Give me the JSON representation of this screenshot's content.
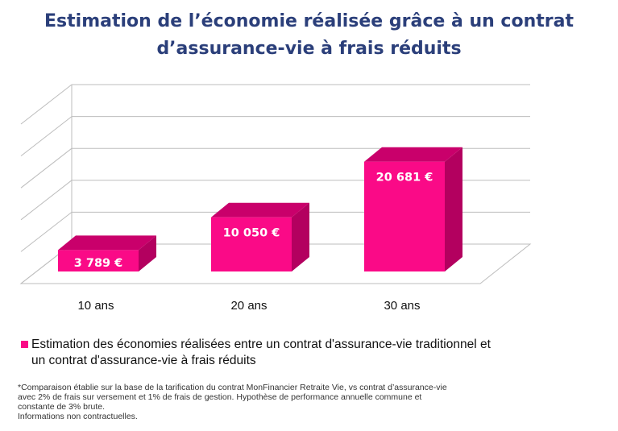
{
  "chart_data": {
    "type": "bar",
    "title": "Estimation de l’économie réalisée grâce à un contrat d’assurance-vie à frais réduits",
    "categories": [
      "10 ans",
      "20 ans",
      "30 ans"
    ],
    "series": [
      {
        "name": "Estimation des économies réalisées entre un contrat d'assurance-vie traditionnel et un contrat d'assurance-vie à frais réduits",
        "values": [
          3789,
          10050,
          20681
        ],
        "labels": [
          "3 789 €",
          "10 050 €",
          "20 681 €"
        ]
      }
    ],
    "ylim": [
      0,
      25000
    ],
    "grid": true,
    "legend_position": "bottom-left",
    "colors": {
      "bar_front": "#fa0a87",
      "bar_top": "#c9006b",
      "bar_side": "#b3005f",
      "grid": "#bdbdbd",
      "title": "#2b3f7a"
    }
  },
  "footnote": [
    "*Comparaison établie sur la base de la tarification du contrat MonFinancier Retraite Vie, vs contrat d’assurance-vie",
    "avec 2% de frais sur versement et 1% de frais de gestion. Hypothèse de performance annuelle commune et",
    "constante de 3% brute.",
    "Informations non contractuelles."
  ]
}
